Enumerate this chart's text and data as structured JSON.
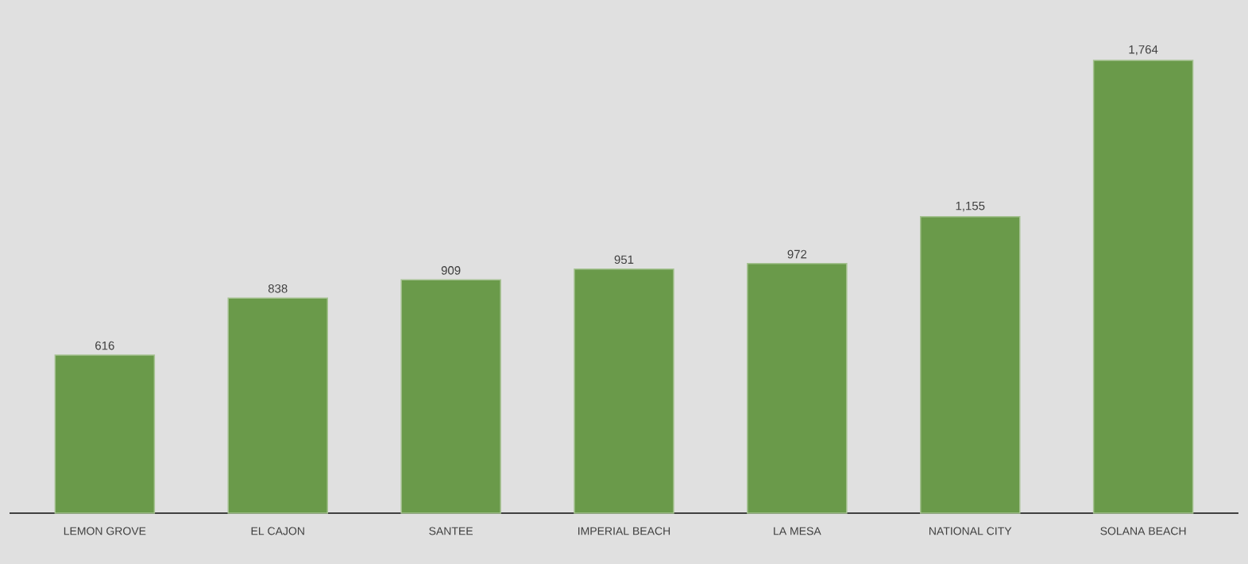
{
  "chart_data": {
    "type": "bar",
    "categories": [
      "LEMON GROVE",
      "EL CAJON",
      "SANTEE",
      "IMPERIAL BEACH",
      "LA MESA",
      "NATIONAL CITY",
      "SOLANA BEACH"
    ],
    "values": [
      616,
      838,
      909,
      951,
      972,
      1155,
      1764
    ],
    "value_labels": [
      "616",
      "838",
      "909",
      "951",
      "972",
      "1,155",
      "1,764"
    ],
    "color": "#6a9a4a"
  }
}
